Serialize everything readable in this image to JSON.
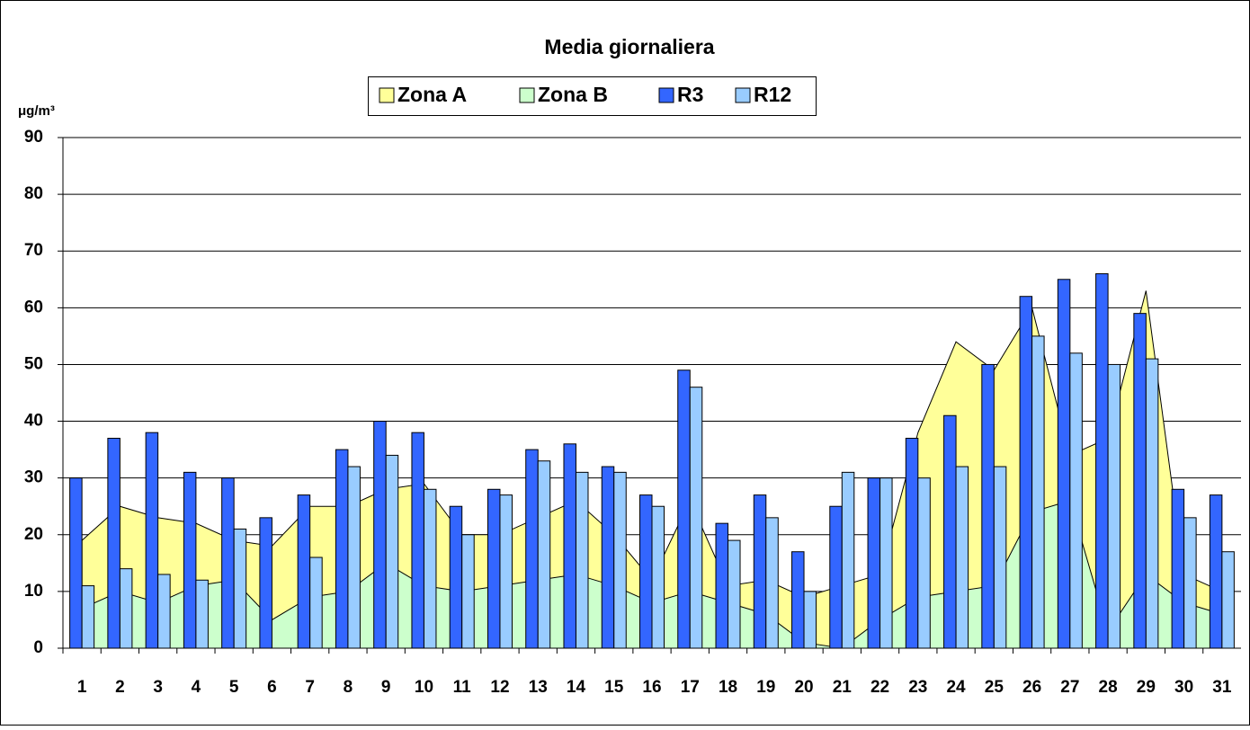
{
  "chart_data": {
    "type": "bar-area",
    "title": "Media giornaliera",
    "y_label": "μg/m³",
    "categories": [
      "1",
      "2",
      "3",
      "4",
      "5",
      "6",
      "7",
      "8",
      "9",
      "10",
      "11",
      "12",
      "13",
      "14",
      "15",
      "16",
      "17",
      "18",
      "19",
      "20",
      "21",
      "22",
      "23",
      "24",
      "25",
      "26",
      "27",
      "28",
      "29",
      "30",
      "31"
    ],
    "series": [
      {
        "name": "Zona A",
        "type": "area",
        "color": "#ffff99",
        "values": [
          19,
          25,
          23,
          22,
          19,
          18,
          25,
          25,
          28,
          29,
          20,
          20,
          23,
          26,
          20,
          12,
          26,
          11,
          12,
          9,
          11,
          13,
          38,
          54,
          49,
          60,
          34,
          37,
          63,
          13,
          10
        ]
      },
      {
        "name": "Zona B",
        "type": "area",
        "color": "#ccffcc",
        "values": [
          7,
          10,
          8,
          11,
          12,
          5,
          9,
          10,
          15,
          11,
          10,
          11,
          12,
          13,
          11,
          8,
          10,
          8,
          6,
          1,
          0,
          5,
          9,
          10,
          11,
          24,
          26,
          3,
          13,
          8,
          6
        ]
      },
      {
        "name": "R3",
        "type": "bar",
        "color": "#3366ff",
        "values": [
          30,
          37,
          38,
          31,
          30,
          23,
          27,
          35,
          40,
          38,
          25,
          28,
          35,
          36,
          32,
          27,
          49,
          22,
          27,
          17,
          25,
          30,
          37,
          41,
          50,
          62,
          65,
          66,
          59,
          28,
          27
        ]
      },
      {
        "name": "R12",
        "type": "bar",
        "color": "#99ccff",
        "values": [
          11,
          14,
          13,
          12,
          21,
          null,
          16,
          32,
          34,
          28,
          20,
          27,
          33,
          31,
          31,
          25,
          46,
          19,
          23,
          10,
          31,
          30,
          30,
          32,
          32,
          55,
          52,
          50,
          51,
          23,
          17
        ]
      }
    ],
    "ylim": [
      0,
      90
    ],
    "yticks": [
      0,
      10,
      20,
      30,
      40,
      50,
      60,
      70,
      80,
      90
    ],
    "grid": true
  }
}
